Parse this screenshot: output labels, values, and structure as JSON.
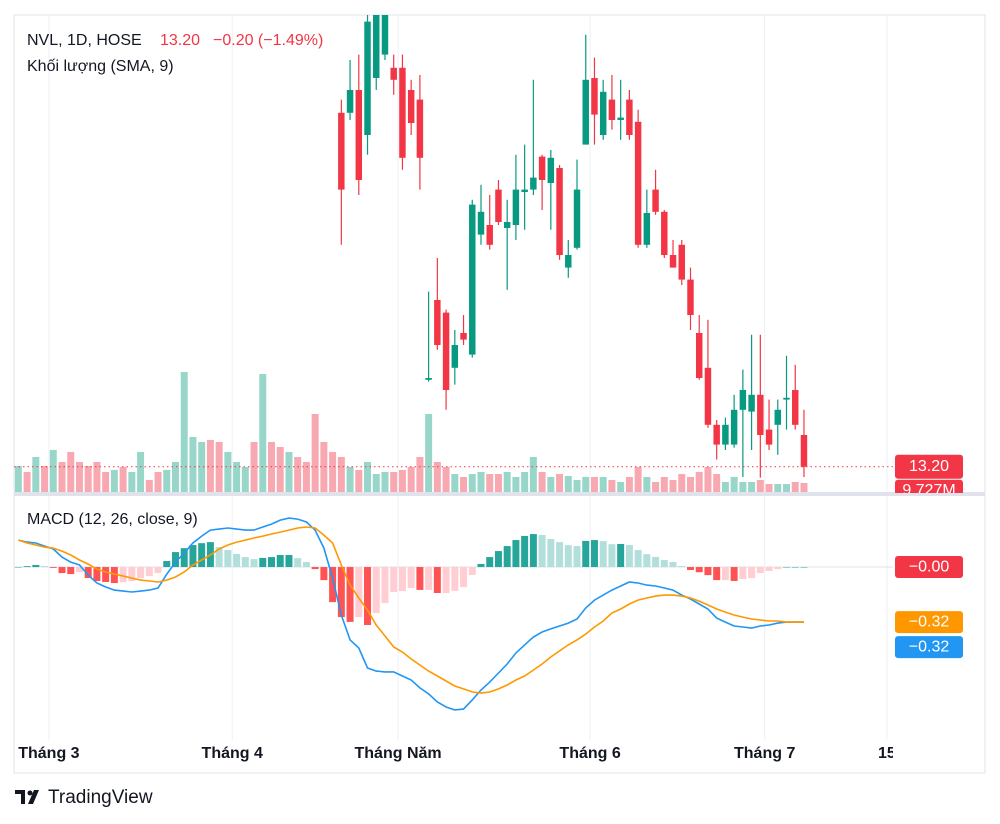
{
  "chart_data": [
    {
      "type": "candlestick",
      "title": "NVL, 1D, HOSE",
      "price_label": "13.20",
      "change_label": "−0.20 (−1.49%)",
      "xlim": [
        -0.5,
        100.2
      ],
      "xticks": [
        {
          "value": 3.5,
          "label": "Tháng 3"
        },
        {
          "value": 24.5,
          "label": "Tháng 4"
        },
        {
          "value": 43.5,
          "label": "Tháng Năm"
        },
        {
          "value": 65.5,
          "label": "Tháng 6"
        },
        {
          "value": 85.5,
          "label": "Tháng 7"
        },
        {
          "value": 99.5,
          "label": "15"
        }
      ],
      "ylim": [
        12.78,
        20.73
      ],
      "up_color": "#089981",
      "down_color": "#f23645",
      "open": [
        null,
        null,
        null,
        null,
        null,
        null,
        null,
        null,
        null,
        null,
        null,
        null,
        null,
        null,
        null,
        null,
        null,
        null,
        null,
        null,
        null,
        null,
        null,
        null,
        null,
        null,
        null,
        null,
        null,
        null,
        null,
        null,
        null,
        null,
        null,
        null,
        null,
        19.1,
        19.1,
        19.48,
        18.73,
        19.68,
        20.07,
        19.85,
        19.85,
        19.48,
        19.32,
        14.65,
        15.98,
        15.77,
        14.85,
        15.43,
        15.07,
        17.07,
        17.23,
        17.82,
        17.18,
        17.23,
        17.78,
        17.82,
        18.37,
        17.93,
        18.18,
        16.52,
        16.85,
        18.57,
        19.68,
        18.73,
        19.32,
        18.98,
        19.32,
        18.95,
        16.9,
        17.82,
        17.45,
        16.73,
        16.9,
        16.32,
        15.43,
        14.85,
        13.9,
        13.57,
        13.57,
        14.15,
        14.12,
        14.4,
        13.82,
        13.9,
        14.32,
        14.48,
        13.73
      ],
      "high": [
        null,
        null,
        null,
        null,
        null,
        null,
        null,
        null,
        null,
        null,
        null,
        null,
        null,
        null,
        null,
        null,
        null,
        null,
        null,
        null,
        null,
        null,
        null,
        null,
        null,
        null,
        null,
        null,
        null,
        null,
        null,
        null,
        null,
        null,
        null,
        null,
        null,
        19.32,
        19.98,
        20.07,
        20.73,
        20.82,
        20.9,
        20.07,
        20.07,
        19.65,
        19.73,
        16.12,
        16.68,
        15.82,
        15.48,
        15.73,
        17.65,
        17.9,
        17.73,
        17.98,
        17.65,
        18.4,
        18.57,
        19.65,
        18.4,
        18.48,
        18.23,
        16.98,
        18.32,
        20.4,
        20.02,
        19.65,
        19.73,
        19.65,
        19.48,
        19.15,
        17.82,
        18.15,
        17.48,
        16.98,
        16.98,
        16.52,
        15.73,
        15.65,
        13.98,
        14.02,
        14.4,
        14.82,
        15.4,
        15.4,
        14.32,
        14.32,
        15.05,
        14.9,
        14.15
      ],
      "low": [
        null,
        null,
        null,
        null,
        null,
        null,
        null,
        null,
        null,
        null,
        null,
        null,
        null,
        null,
        null,
        null,
        null,
        null,
        null,
        null,
        null,
        null,
        null,
        null,
        null,
        null,
        null,
        null,
        null,
        null,
        null,
        null,
        null,
        null,
        null,
        null,
        null,
        16.9,
        18.98,
        17.73,
        18.4,
        19.48,
        19.98,
        19.4,
        18.15,
        18.73,
        17.82,
        14.62,
        15.15,
        14.15,
        14.57,
        15.23,
        15.02,
        16.9,
        16.82,
        17.23,
        16.15,
        16.98,
        17.15,
        17.73,
        17.48,
        17.15,
        16.65,
        16.35,
        16.82,
        18.57,
        18.57,
        18.65,
        18.82,
        18.65,
        18.65,
        16.85,
        16.85,
        17.4,
        16.68,
        16.52,
        16.23,
        15.48,
        14.65,
        13.85,
        13.32,
        13.48,
        13.52,
        13.03,
        13.48,
        13.02,
        13.48,
        13.4,
        13.82,
        13.82,
        13.03
      ],
      "close": [
        null,
        null,
        null,
        null,
        null,
        null,
        null,
        null,
        null,
        null,
        null,
        null,
        null,
        null,
        null,
        null,
        null,
        null,
        null,
        null,
        null,
        null,
        null,
        null,
        null,
        null,
        null,
        null,
        null,
        null,
        null,
        null,
        null,
        null,
        null,
        null,
        null,
        17.82,
        19.48,
        17.98,
        20.62,
        20.73,
        20.73,
        19.65,
        18.35,
        18.93,
        18.35,
        14.68,
        15.23,
        14.48,
        15.23,
        15.32,
        17.57,
        17.45,
        16.9,
        17.28,
        17.28,
        17.82,
        17.82,
        18.02,
        17.98,
        18.35,
        16.73,
        16.73,
        17.82,
        19.65,
        19.07,
        19.45,
        18.98,
        19.02,
        18.73,
        16.9,
        17.43,
        17.45,
        16.73,
        16.52,
        16.32,
        15.73,
        14.68,
        13.9,
        13.57,
        13.9,
        14.15,
        14.48,
        14.4,
        13.73,
        13.57,
        14.15,
        14.35,
        13.9,
        13.2
      ]
    },
    {
      "type": "volume",
      "title": "Khối lượng (SMA, 9)",
      "ylim": [
        0,
        515
      ],
      "last_label": "9.727M",
      "up_color": "#98d6ca",
      "down_color": "#f7a8b0",
      "label_color": "#f23645",
      "values": [
        28.1,
        21.6,
        37.8,
        28.1,
        45.4,
        32.4,
        43.2,
        32.4,
        28.1,
        32.4,
        21.6,
        23.8,
        27.0,
        21.6,
        43.2,
        13.0,
        21.6,
        23.8,
        32.4,
        129.6,
        59.4,
        54.0,
        56.2,
        54.0,
        43.2,
        32.4,
        27.0,
        54.0,
        127.4,
        54.0,
        48.6,
        43.2,
        37.8,
        32.4,
        84.2,
        54.0,
        43.2,
        37.8,
        27.0,
        23.8,
        32.4,
        19.4,
        21.6,
        21.6,
        23.8,
        27.0,
        37.8,
        84.2,
        32.4,
        27.0,
        19.4,
        16.2,
        19.4,
        21.6,
        19.4,
        19.4,
        21.6,
        16.2,
        21.6,
        37.8,
        21.6,
        16.2,
        19.4,
        17.3,
        13.0,
        16.2,
        16.2,
        16.2,
        13.0,
        10.8,
        16.2,
        27.0,
        16.2,
        10.8,
        16.2,
        13.0,
        19.4,
        16.2,
        21.6,
        27.0,
        19.4,
        10.8,
        16.2,
        10.8,
        10.8,
        13.0,
        8.6,
        8.6,
        8.6,
        10.8,
        9.727
      ],
      "up": [
        true,
        false,
        true,
        false,
        true,
        false,
        false,
        false,
        false,
        false,
        false,
        true,
        false,
        true,
        true,
        false,
        false,
        true,
        true,
        true,
        true,
        true,
        false,
        false,
        true,
        true,
        true,
        false,
        true,
        false,
        false,
        true,
        false,
        false,
        false,
        false,
        false,
        false,
        true,
        false,
        true,
        true,
        true,
        false,
        false,
        false,
        false,
        true,
        false,
        false,
        true,
        false,
        true,
        true,
        false,
        false,
        true,
        true,
        true,
        true,
        false,
        true,
        false,
        true,
        true,
        true,
        false,
        true,
        false,
        true,
        false,
        false,
        true,
        false,
        false,
        false,
        false,
        false,
        false,
        false,
        false,
        true,
        true,
        true,
        true,
        false,
        false,
        true,
        true,
        false,
        false
      ]
    },
    {
      "type": "macd",
      "title": "MACD (12, 26, close, 9)",
      "ylim": [
        -1.006,
        0.39
      ],
      "series": [
        {
          "style": "line",
          "color": "#2196f3",
          "last_label": "−0.32",
          "values": [
            0.157,
            0.145,
            0.14,
            0.122,
            0.105,
            0.058,
            0.029,
            0.012,
            -0.047,
            -0.093,
            -0.116,
            -0.134,
            -0.14,
            -0.145,
            -0.14,
            -0.134,
            -0.122,
            -0.041,
            0.029,
            0.081,
            0.14,
            0.18,
            0.215,
            0.221,
            0.227,
            0.221,
            0.215,
            0.215,
            0.233,
            0.25,
            0.273,
            0.285,
            0.279,
            0.262,
            0.215,
            0.11,
            -0.064,
            -0.279,
            -0.424,
            -0.471,
            -0.587,
            -0.605,
            -0.61,
            -0.61,
            -0.634,
            -0.657,
            -0.703,
            -0.738,
            -0.785,
            -0.814,
            -0.831,
            -0.826,
            -0.773,
            -0.715,
            -0.669,
            -0.616,
            -0.564,
            -0.5,
            -0.453,
            -0.407,
            -0.378,
            -0.36,
            -0.343,
            -0.326,
            -0.302,
            -0.238,
            -0.192,
            -0.163,
            -0.134,
            -0.11,
            -0.087,
            -0.093,
            -0.105,
            -0.11,
            -0.122,
            -0.134,
            -0.163,
            -0.186,
            -0.215,
            -0.244,
            -0.297,
            -0.32,
            -0.343,
            -0.349,
            -0.355,
            -0.343,
            -0.337,
            -0.326,
            -0.32,
            -0.32,
            -0.32
          ]
        },
        {
          "style": "line",
          "color": "#ff9800",
          "last_label": "−0.32",
          "values": [
            0.157,
            0.14,
            0.128,
            0.116,
            0.11,
            0.093,
            0.07,
            0.041,
            0.017,
            -0.012,
            -0.029,
            -0.041,
            -0.052,
            -0.064,
            -0.076,
            -0.081,
            -0.087,
            -0.076,
            -0.058,
            -0.029,
            0.012,
            0.041,
            0.07,
            0.105,
            0.128,
            0.145,
            0.157,
            0.169,
            0.18,
            0.192,
            0.203,
            0.215,
            0.227,
            0.233,
            0.227,
            0.186,
            0.14,
            0.012,
            -0.105,
            -0.18,
            -0.25,
            -0.337,
            -0.401,
            -0.465,
            -0.494,
            -0.535,
            -0.57,
            -0.605,
            -0.634,
            -0.663,
            -0.692,
            -0.709,
            -0.727,
            -0.733,
            -0.727,
            -0.709,
            -0.686,
            -0.657,
            -0.634,
            -0.599,
            -0.564,
            -0.523,
            -0.488,
            -0.453,
            -0.424,
            -0.39,
            -0.349,
            -0.314,
            -0.267,
            -0.244,
            -0.215,
            -0.192,
            -0.18,
            -0.169,
            -0.163,
            -0.163,
            -0.169,
            -0.18,
            -0.198,
            -0.221,
            -0.244,
            -0.262,
            -0.279,
            -0.291,
            -0.302,
            -0.308,
            -0.314,
            -0.314,
            -0.32,
            -0.32,
            -0.32
          ]
        },
        {
          "style": "histogram",
          "last_label": "−0.00",
          "label_color": "#f23645",
          "colors": {
            "rise_above": "#26a69a",
            "fall_above": "#b2dfdb",
            "rise_below": "#ffcdd2",
            "fall_below": "#ff5252"
          },
          "values": [
            0.0,
            0.005,
            0.012,
            0.006,
            -0.005,
            -0.035,
            -0.041,
            -0.029,
            -0.064,
            -0.081,
            -0.087,
            -0.093,
            -0.088,
            -0.081,
            -0.064,
            -0.053,
            -0.035,
            0.035,
            0.087,
            0.11,
            0.128,
            0.139,
            0.145,
            0.116,
            0.099,
            0.076,
            0.058,
            0.046,
            0.053,
            0.058,
            0.07,
            0.07,
            0.052,
            0.029,
            -0.012,
            -0.076,
            -0.204,
            -0.291,
            -0.319,
            -0.291,
            -0.337,
            -0.268,
            -0.209,
            -0.145,
            -0.14,
            -0.122,
            -0.133,
            -0.133,
            -0.151,
            -0.151,
            -0.139,
            -0.117,
            -0.046,
            0.018,
            0.058,
            0.093,
            0.122,
            0.157,
            0.181,
            0.192,
            0.186,
            0.163,
            0.145,
            0.127,
            0.122,
            0.152,
            0.157,
            0.151,
            0.133,
            0.134,
            0.128,
            0.099,
            0.075,
            0.059,
            0.041,
            0.029,
            0.006,
            -0.017,
            -0.03,
            -0.047,
            -0.076,
            -0.076,
            -0.081,
            -0.07,
            -0.064,
            -0.035,
            -0.023,
            -0.012,
            0.0,
            0.0,
            0.0
          ]
        }
      ]
    }
  ],
  "footer": {
    "brand": "TradingView"
  }
}
